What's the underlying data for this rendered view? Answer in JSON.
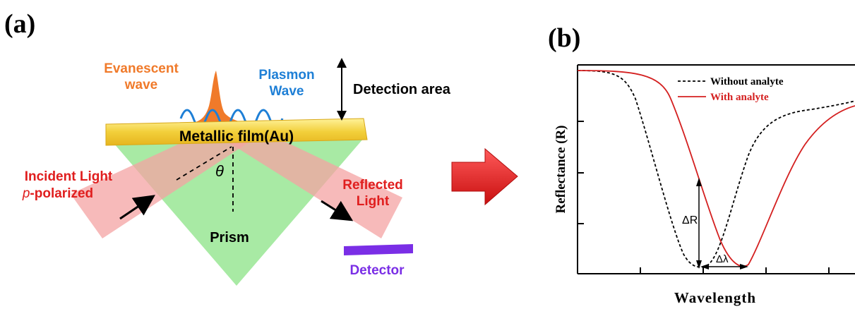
{
  "panel_a": {
    "label": "(a)",
    "evanescent_line1": "Evanescent",
    "evanescent_line2": "wave",
    "plasmon_line1": "Plasmon",
    "plasmon_line2": "Wave",
    "detection_area": "Detection area",
    "film": "Metallic film(Au)",
    "theta": "θ",
    "incident_line1": "Incident Light",
    "incident_line2": "p-polarized",
    "reflected_line1": "Reflected",
    "reflected_line2": "Light",
    "prism": "Prism",
    "detector": "Detector"
  },
  "panel_b": {
    "label": "(b)",
    "ylabel": "Reflectance (R)",
    "xlabel": "Wavelength",
    "legend_without": "Without analyte",
    "legend_with": "With analyte",
    "delta_r": "ΔR",
    "delta_lambda": "Δλ"
  },
  "colors": {
    "prism": "#9fe89a",
    "film": "#f2cf3a",
    "light_beam": "#f4a3a3",
    "evanescent": "#f07a2a",
    "plasmon": "#1e7fd6",
    "incident_text": "#e01e1e",
    "detector": "#7a2ee6",
    "curve_with": "#d42020",
    "curve_without": "#000000",
    "big_arrow": "#e61a1a"
  }
}
